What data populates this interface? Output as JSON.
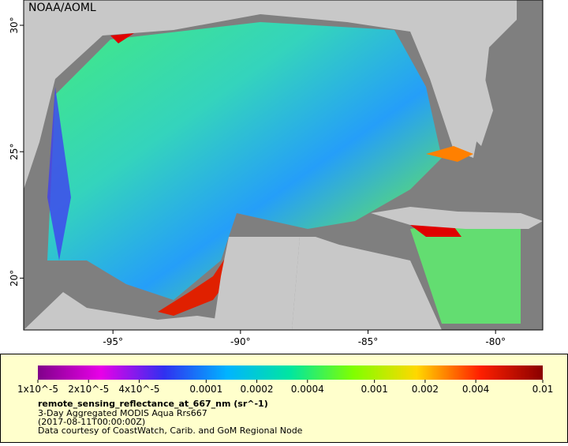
{
  "header": {
    "credit": "NOAA/AOML"
  },
  "axes": {
    "xlim": [
      -98.5,
      -78.15
    ],
    "ylim": [
      17.95,
      31
    ],
    "xticks": [
      {
        "value": -95,
        "label": "-95°"
      },
      {
        "value": -90,
        "label": "-90°"
      },
      {
        "value": -85,
        "label": "-85°"
      },
      {
        "value": -80,
        "label": "-80°"
      }
    ],
    "yticks": [
      {
        "value": 20,
        "label": "20°"
      },
      {
        "value": 25,
        "label": "25°"
      },
      {
        "value": 30,
        "label": "30°"
      }
    ]
  },
  "colorbar": {
    "scale": "log",
    "lim": [
      1e-05,
      0.01
    ],
    "colors": [
      "#80008a",
      "#e800e8",
      "#3030f0",
      "#00b4ff",
      "#00e6a0",
      "#80ff00",
      "#ffd800",
      "#ff2000",
      "#8a0000"
    ],
    "ticks": [
      {
        "value": 1e-05,
        "label": "1x10^-5"
      },
      {
        "value": 2e-05,
        "label": "2x10^-5"
      },
      {
        "value": 4e-05,
        "label": "4x10^-5"
      },
      0.0001,
      0.0002,
      0.0004,
      0.001,
      0.002,
      0.004,
      0.01
    ]
  },
  "legend": {
    "title": "remote_sensing_reflectance_at_667_nm (sr^-1)",
    "lines": [
      "3-Day Aggregated MODIS Aqua Rrs667",
      "(2017-08-11T00:00:00Z)",
      "Data courtesy of CoastWatch, Carib. and GoM Regional Node"
    ]
  }
}
